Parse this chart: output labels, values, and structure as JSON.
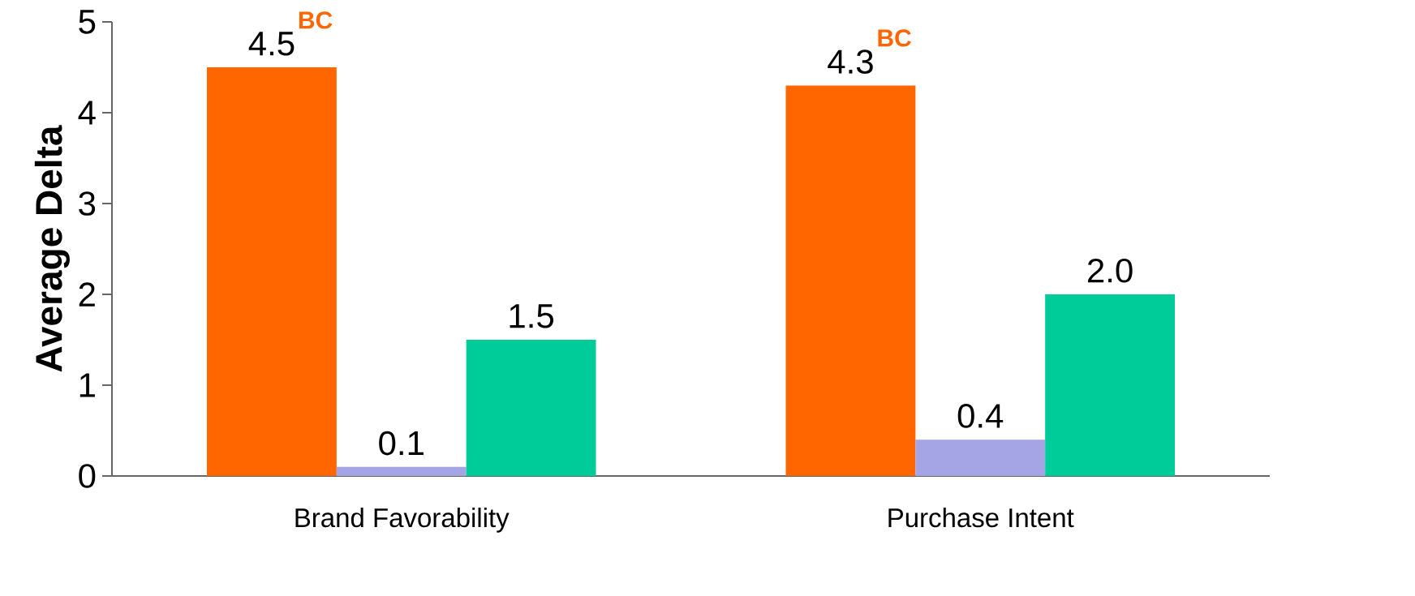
{
  "chart_data": {
    "type": "bar",
    "ylabel": "Average Delta",
    "categories": [
      "Brand Favorability",
      "Purchase Intent"
    ],
    "series": [
      {
        "color": "#ff6600",
        "values": [
          4.5,
          4.3
        ],
        "value_labels": [
          "4.5",
          "4.3"
        ]
      },
      {
        "color": "#a5a5e6",
        "values": [
          0.1,
          0.4
        ],
        "value_labels": [
          "0.1",
          "0.4"
        ]
      },
      {
        "color": "#00cc99",
        "values": [
          1.5,
          2.0
        ],
        "value_labels": [
          "1.5",
          "2.0"
        ]
      }
    ],
    "annotations": [
      "BC",
      "BC"
    ],
    "ylim": [
      0,
      5
    ],
    "yticks": [
      0,
      1,
      2,
      3,
      4,
      5
    ],
    "grid": false
  }
}
